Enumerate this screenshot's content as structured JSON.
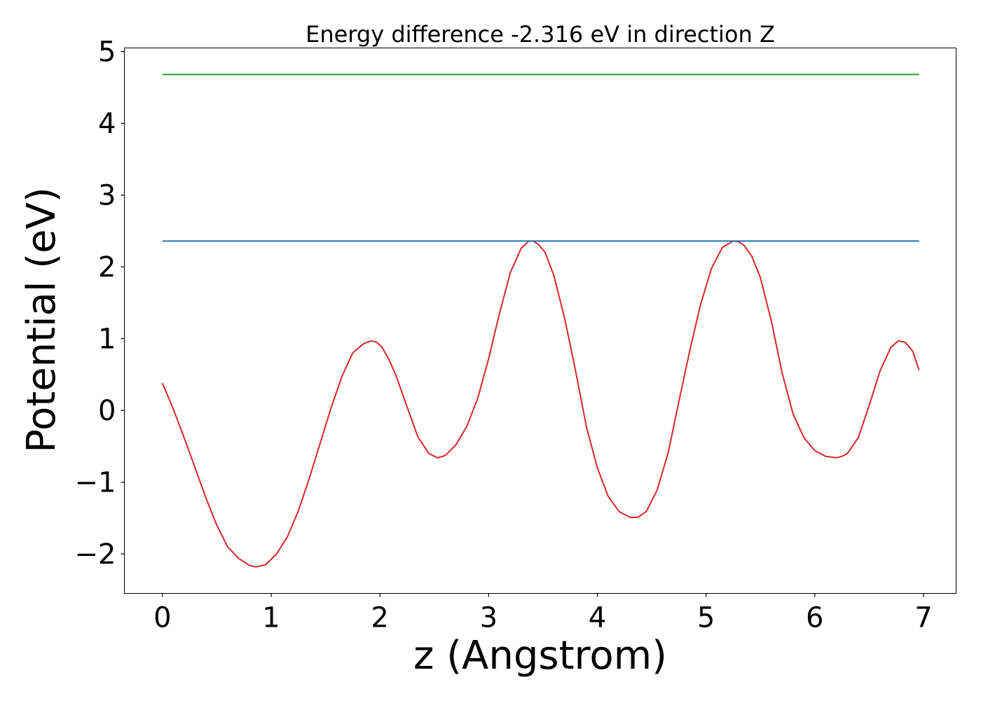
{
  "chart_data": {
    "type": "line",
    "title": "Energy difference -2.316 eV in direction Z",
    "xlabel": "z (Angstrom)",
    "ylabel": "Potential (eV)",
    "xlim": [
      -0.35,
      7.3
    ],
    "ylim": [
      -2.55,
      5.05
    ],
    "xticks": [
      0,
      1,
      2,
      3,
      4,
      5,
      6,
      7
    ],
    "xtick_labels": [
      "0",
      "1",
      "2",
      "3",
      "4",
      "5",
      "6",
      "7"
    ],
    "yticks": [
      -2,
      -1,
      0,
      1,
      2,
      3,
      4,
      5
    ],
    "ytick_labels": [
      "−2",
      "−1",
      "0",
      "1",
      "2",
      "3",
      "4",
      "5"
    ],
    "grid": false,
    "series": [
      {
        "color": "#d62728",
        "x": [
          0,
          0.1,
          0.2,
          0.3,
          0.4,
          0.5,
          0.6,
          0.7,
          0.8,
          0.86,
          0.95,
          1.05,
          1.15,
          1.25,
          1.35,
          1.45,
          1.55,
          1.65,
          1.75,
          1.85,
          1.92,
          1.97,
          2.02,
          2.08,
          2.15,
          2.25,
          2.35,
          2.45,
          2.53,
          2.6,
          2.7,
          2.8,
          2.9,
          3.0,
          3.1,
          3.2,
          3.3,
          3.37,
          3.41,
          3.46,
          3.52,
          3.6,
          3.7,
          3.8,
          3.9,
          4.0,
          4.1,
          4.2,
          4.3,
          4.37,
          4.45,
          4.55,
          4.65,
          4.75,
          4.85,
          4.95,
          5.05,
          5.15,
          5.25,
          5.3,
          5.35,
          5.42,
          5.5,
          5.6,
          5.7,
          5.8,
          5.9,
          6.0,
          6.1,
          6.2,
          6.25,
          6.3,
          6.4,
          6.5,
          6.6,
          6.7,
          6.77,
          6.83,
          6.9,
          6.96
        ],
        "y": [
          0.38,
          0.02,
          -0.38,
          -0.8,
          -1.22,
          -1.6,
          -1.9,
          -2.06,
          -2.16,
          -2.18,
          -2.15,
          -2.0,
          -1.76,
          -1.4,
          -0.95,
          -0.46,
          0.03,
          0.47,
          0.8,
          0.93,
          0.97,
          0.95,
          0.88,
          0.72,
          0.48,
          0.05,
          -0.37,
          -0.6,
          -0.66,
          -0.63,
          -0.48,
          -0.22,
          0.17,
          0.72,
          1.35,
          1.92,
          2.26,
          2.36,
          2.36,
          2.31,
          2.2,
          1.88,
          1.28,
          0.55,
          -0.23,
          -0.8,
          -1.2,
          -1.41,
          -1.49,
          -1.49,
          -1.41,
          -1.11,
          -0.6,
          0.12,
          0.83,
          1.48,
          1.98,
          2.27,
          2.36,
          2.35,
          2.3,
          2.15,
          1.85,
          1.25,
          0.52,
          -0.05,
          -0.38,
          -0.56,
          -0.64,
          -0.66,
          -0.64,
          -0.6,
          -0.38,
          0.07,
          0.55,
          0.88,
          0.97,
          0.95,
          0.83,
          0.56
        ]
      },
      {
        "color": "#1f77b4",
        "x": [
          0,
          6.96
        ],
        "y": [
          2.36,
          2.36
        ]
      },
      {
        "color": "#2ca02c",
        "x": [
          0,
          6.96
        ],
        "y": [
          4.68,
          4.68
        ]
      }
    ]
  }
}
